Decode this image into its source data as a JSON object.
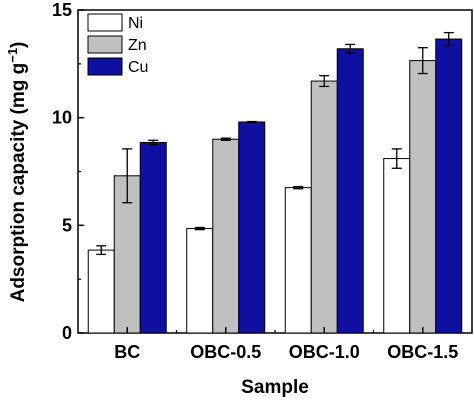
{
  "chart_data": {
    "type": "bar",
    "categories": [
      "BC",
      "OBC-0.5",
      "OBC-1.0",
      "OBC-1.5"
    ],
    "series": [
      {
        "name": "Ni",
        "color": "#ffffff",
        "values": [
          3.85,
          4.85,
          6.75,
          8.1
        ],
        "errors": [
          0.2,
          0.05,
          0.05,
          0.45
        ]
      },
      {
        "name": "Zn",
        "color": "#c0c0c0",
        "values": [
          7.3,
          9.0,
          11.7,
          12.65
        ],
        "errors": [
          1.25,
          0.05,
          0.25,
          0.6
        ]
      },
      {
        "name": "Cu",
        "color": "#1010a0",
        "values": [
          8.85,
          9.8,
          13.2,
          13.65
        ],
        "errors": [
          0.1,
          0.02,
          0.2,
          0.3
        ]
      }
    ],
    "xlabel": "Sample",
    "ylabel_main": "Adsorption capacity (mg g",
    "ylabel_sup": "−1",
    "ylabel_close": ")",
    "ylim": [
      0,
      15
    ],
    "yticks": [
      "0",
      "5",
      "10",
      "15"
    ],
    "legend_position": "top-left",
    "grid": false
  }
}
